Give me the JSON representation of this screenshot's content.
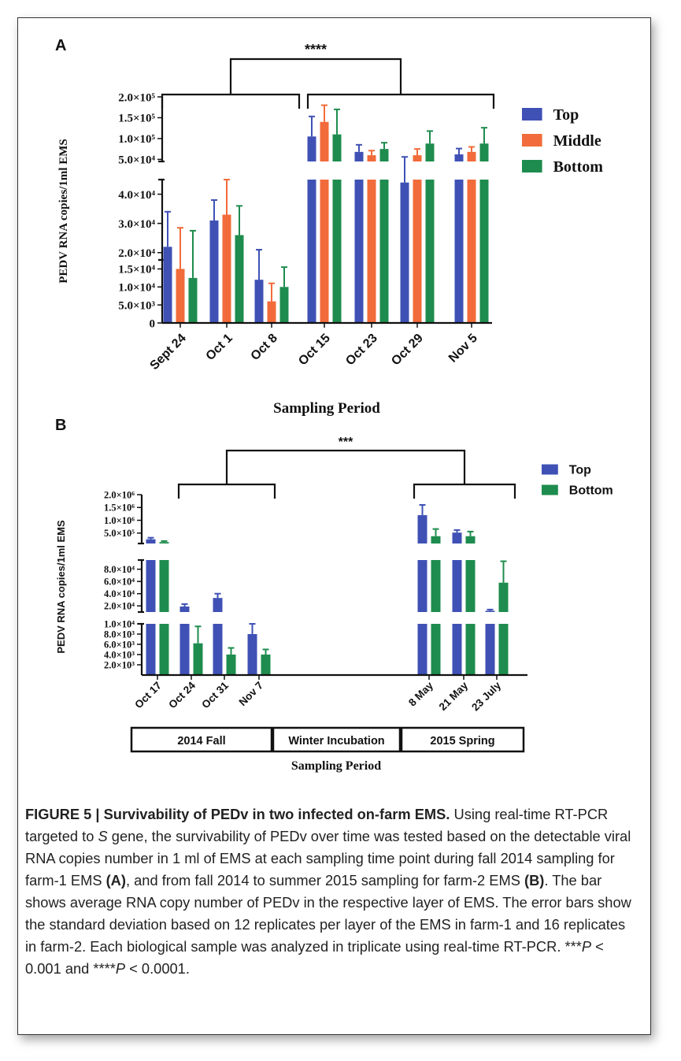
{
  "caption": {
    "label": "FIGURE 5 | Survivability of PEDv in two infected on-farm EMS.",
    "pre_s": " Using real-time RT-PCR targeted to ",
    "s_italic": "S",
    "post_s": " gene, the survivability of PEDv over time was tested based on the detectable viral RNA copies number in 1 ml of EMS at each sampling time point during fall 2014 sampling for farm-1 EMS ",
    "a_ref": "(A)",
    "mid": ", and from fall 2014 to summer 2015 sampling for farm-2 EMS ",
    "b_ref": "(B)",
    "post": ". The bar shows average RNA copy number of PEDv in the respective layer of EMS. The error bars show the standard deviation based on 12 replicates per layer of the EMS in farm-1 and 16 replicates in farm-2. Each biological sample was analyzed in triplicate using real-time RT-PCR. ***",
    "p1": "P",
    "lt1": " < 0.001 and ****",
    "p2": "P",
    "lt2": " < 0.0001."
  },
  "chart_data": [
    {
      "panel": "A",
      "type": "bar",
      "categories": [
        "Sept 24",
        "Oct 1",
        "Oct 8",
        "Oct 15",
        "Oct 23",
        "Oct 29",
        "Nov 5"
      ],
      "xlabel": "Sampling Period",
      "ylabel": "PEDV RNA copies/1ml EMS",
      "y_scale": "broken axis (3 segments)",
      "y_segments": [
        {
          "range": [
            0,
            17500
          ],
          "ticks": [
            0,
            5000,
            10000,
            15000
          ],
          "tick_labels": [
            "0",
            "5.0×10³",
            "1.0×10⁴",
            "1.5×10⁴"
          ]
        },
        {
          "range": [
            17500,
            45000
          ],
          "ticks": [
            20000,
            30000,
            40000
          ],
          "tick_labels": [
            "2.0×10⁴",
            "3.0×10⁴",
            "4.0×10⁴"
          ]
        },
        {
          "range": [
            45000,
            200000
          ],
          "ticks": [
            50000,
            100000,
            150000,
            200000
          ],
          "tick_labels": [
            "5.0×10⁴",
            "1.0×10⁵",
            "1.5×10⁵",
            "2.0×10⁵"
          ]
        }
      ],
      "series": [
        {
          "name": "Top",
          "color": "#3f51b5",
          "values": [
            22000,
            31000,
            12000,
            105000,
            68000,
            44000,
            62000
          ],
          "errors": [
            12000,
            7000,
            9000,
            48000,
            17000,
            12000,
            14000
          ]
        },
        {
          "name": "Middle",
          "color": "#f26b3a",
          "values": [
            15000,
            33000,
            6000,
            140000,
            60000,
            60000,
            68000
          ],
          "errors": [
            13500,
            12000,
            5000,
            40000,
            11000,
            15000,
            12000
          ]
        },
        {
          "name": "Bottom",
          "color": "#1e8c4e",
          "values": [
            12500,
            26000,
            10000,
            110000,
            75000,
            88000,
            88000
          ],
          "errors": [
            15000,
            10000,
            5500,
            60000,
            15000,
            30000,
            38000
          ]
        }
      ],
      "significance": "****",
      "legend_position": "right"
    },
    {
      "panel": "B",
      "type": "bar",
      "categories": [
        "Oct 17",
        "Oct 24",
        "Oct 31",
        "Nov 7",
        "8 May",
        "21 May",
        "23 July"
      ],
      "xlabel": "Sampling Period",
      "ylabel": "PEDV RNA copies/1ml EMS",
      "groups": [
        "2014 Fall",
        "Winter Incubation",
        "2015 Spring"
      ],
      "y_scale": "broken axis (3 segments)",
      "y_segments": [
        {
          "range": [
            0,
            10000
          ],
          "ticks": [
            2000,
            4000,
            6000,
            8000,
            10000
          ],
          "tick_labels": [
            "2.0×10³",
            "4.0×10³",
            "6.0×10³",
            "8.0×10³",
            "1.0×10⁴"
          ]
        },
        {
          "range": [
            10000,
            95000
          ],
          "ticks": [
            20000,
            40000,
            60000,
            80000
          ],
          "tick_labels": [
            "2.0×10⁴",
            "4.0×10⁴",
            "6.0×10⁴",
            "8.0×10⁴"
          ]
        },
        {
          "range": [
            95000,
            2000000
          ],
          "ticks": [
            500000,
            1000000,
            1500000,
            2000000
          ],
          "tick_labels": [
            "5.0×10⁵",
            "1.0×10⁶",
            "1.5×10⁶",
            "2.0×10⁶"
          ]
        }
      ],
      "series": [
        {
          "name": "Top",
          "color": "#3f51b5",
          "values": [
            260000,
            19000,
            33000,
            8000,
            1200000,
            520000,
            12000
          ],
          "errors": [
            60000,
            4000,
            7000,
            2000,
            400000,
            100000,
            2000
          ]
        },
        {
          "name": "Bottom",
          "color": "#1e8c4e",
          "values": [
            150000,
            6200,
            4000,
            4000,
            380000,
            380000,
            58000
          ],
          "errors": [
            40000,
            3300,
            1300,
            1000,
            280000,
            180000,
            35000
          ]
        }
      ],
      "significance": "***",
      "legend_position": "top-right"
    }
  ]
}
